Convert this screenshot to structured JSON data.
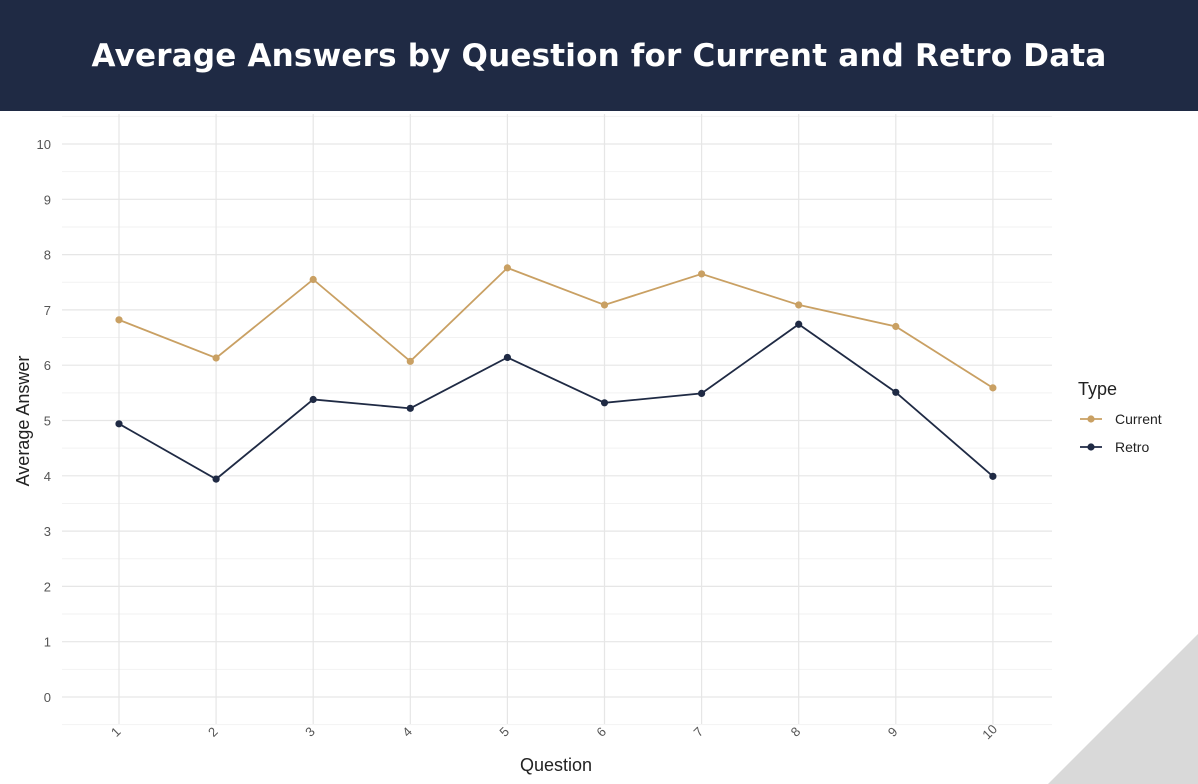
{
  "chart_data": {
    "type": "line",
    "title": "Average Answers by Question for Current and Retro Data",
    "xlabel": "Question",
    "ylabel": "Average Answer",
    "categories": [
      "1",
      "2",
      "3",
      "4",
      "5",
      "6",
      "7",
      "8",
      "9",
      "10"
    ],
    "ylim": [
      0,
      10
    ],
    "yticks": [
      "0",
      "1",
      "2",
      "3",
      "4",
      "5",
      "6",
      "7",
      "8",
      "9",
      "10"
    ],
    "grid": true,
    "legend": {
      "title": "Type",
      "placement": "right"
    },
    "series": [
      {
        "name": "Current",
        "color": "#c9a063",
        "values": [
          6.82,
          6.13,
          7.55,
          6.07,
          7.76,
          7.09,
          7.65,
          7.09,
          6.7,
          5.59
        ]
      },
      {
        "name": "Retro",
        "color": "#1f2a44",
        "values": [
          4.94,
          3.94,
          5.38,
          5.22,
          6.14,
          5.32,
          5.49,
          6.74,
          5.51,
          3.99
        ]
      }
    ]
  }
}
